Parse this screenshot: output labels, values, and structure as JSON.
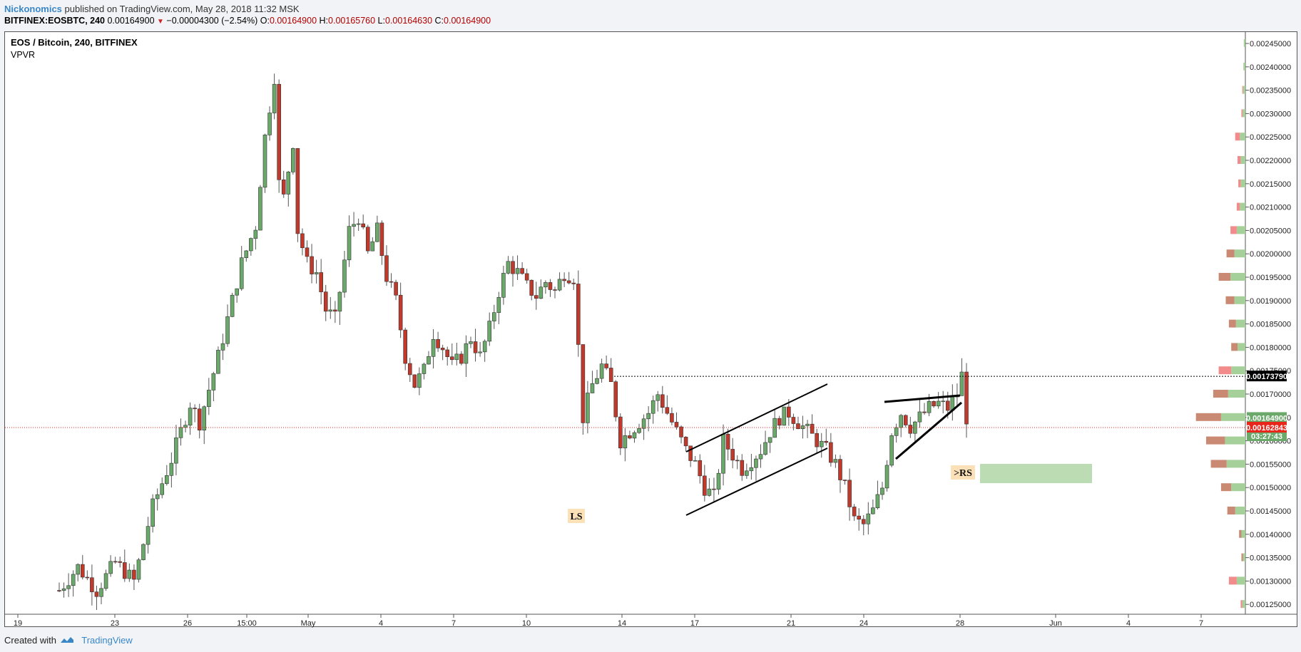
{
  "header": {
    "author": "Nickonomics",
    "published_text": "published on TradingView.com, May 28, 2018 11:32 MSK",
    "symbol": "BITFINEX:EOSBTC, 240",
    "last": "0.00164900",
    "change": "−0.00004300 (−2.54%)",
    "open_label": "O:",
    "open": "0.00164900",
    "high_label": "H:",
    "high": "0.00165760",
    "low_label": "L:",
    "low": "0.00164630",
    "close_label": "C:",
    "close": "0.00164900"
  },
  "chart_title": "EOS / Bitcoin, 240, BITFINEX",
  "indicator": "VPVR",
  "footer": {
    "created_with": "Created with",
    "brand": "TradingView"
  },
  "colors": {
    "up": "#6aa96a",
    "down": "#c0392b",
    "vp_up": "#a6d09a",
    "vp_down_red": "#f28b8b",
    "vp_down_brown": "#c98973",
    "accent": "#3a87c8"
  },
  "chart_data": {
    "type": "candlestick",
    "ylim": [
      0.00124,
      0.00248
    ],
    "y_ticks": [
      "0.00125000",
      "0.00130000",
      "0.00135000",
      "0.00140000",
      "0.00145000",
      "0.00150000",
      "0.00155000",
      "0.00160000",
      "0.00165000",
      "0.00170000",
      "0.00175000",
      "0.00180000",
      "0.00185000",
      "0.00190000",
      "0.00195000",
      "0.00200000",
      "0.00205000",
      "0.00210000",
      "0.00215000",
      "0.00220000",
      "0.00225000",
      "0.00230000",
      "0.00235000",
      "0.00240000",
      "0.00245000"
    ],
    "x_ticks": [
      "19",
      "23",
      "26",
      "15:00",
      "May",
      "4",
      "7",
      "10",
      "14",
      "17",
      "21",
      "24",
      "28",
      "Jun",
      "4",
      "7"
    ],
    "price_labels": [
      {
        "value": "0.00173790",
        "price": 0.0017379,
        "bg": "#000000"
      },
      {
        "value": "0.00164900",
        "price": 0.001649,
        "bg": "#6aa96a"
      },
      {
        "value": "03:27:43",
        "price": 0.001624,
        "bg": "#6aa96a"
      },
      {
        "value": "0.00162843",
        "price": 0.00162843,
        "bg": "#e8261c"
      }
    ],
    "annotations": [
      {
        "text": "LS",
        "type": "label"
      },
      {
        "text": ">RS",
        "type": "label"
      }
    ],
    "trend": [
      [
        0,
        0.00128
      ],
      [
        4,
        0.00133
      ],
      [
        8,
        0.00128
      ],
      [
        12,
        0.00134
      ],
      [
        16,
        0.0013
      ],
      [
        20,
        0.00146
      ],
      [
        24,
        0.00156
      ],
      [
        28,
        0.00168
      ],
      [
        30,
        0.00164
      ],
      [
        34,
        0.00178
      ],
      [
        36,
        0.00186
      ],
      [
        39,
        0.00198
      ],
      [
        42,
        0.00206
      ],
      [
        44,
        0.00225
      ],
      [
        46,
        0.00238
      ],
      [
        47,
        0.00215
      ],
      [
        48,
        0.00212
      ],
      [
        50,
        0.00224
      ],
      [
        51,
        0.00205
      ],
      [
        53,
        0.00198
      ],
      [
        55,
        0.00196
      ],
      [
        57,
        0.00188
      ],
      [
        59,
        0.00186
      ],
      [
        60,
        0.00192
      ],
      [
        62,
        0.00205
      ],
      [
        64,
        0.00208
      ],
      [
        66,
        0.002
      ],
      [
        68,
        0.00205
      ],
      [
        70,
        0.00195
      ],
      [
        72,
        0.0019
      ],
      [
        74,
        0.00178
      ],
      [
        76,
        0.00172
      ],
      [
        78,
        0.00175
      ],
      [
        80,
        0.00183
      ],
      [
        82,
        0.0018
      ],
      [
        84,
        0.00176
      ],
      [
        86,
        0.00178
      ],
      [
        88,
        0.00182
      ],
      [
        90,
        0.00178
      ],
      [
        92,
        0.00184
      ],
      [
        94,
        0.00192
      ],
      [
        96,
        0.00198
      ],
      [
        98,
        0.00196
      ],
      [
        100,
        0.00193
      ],
      [
        102,
        0.00191
      ],
      [
        104,
        0.00194
      ],
      [
        106,
        0.00192
      ],
      [
        108,
        0.00196
      ],
      [
        110,
        0.00195
      ],
      [
        111,
        0.0018
      ],
      [
        112,
        0.00165
      ],
      [
        114,
        0.00172
      ],
      [
        116,
        0.00176
      ],
      [
        118,
        0.00172
      ],
      [
        120,
        0.0016
      ],
      [
        122,
        0.00162
      ],
      [
        124,
        0.00164
      ],
      [
        126,
        0.00166
      ],
      [
        128,
        0.0017
      ],
      [
        130,
        0.00166
      ],
      [
        132,
        0.00162
      ],
      [
        134,
        0.00158
      ],
      [
        136,
        0.00155
      ],
      [
        138,
        0.0015
      ],
      [
        140,
        0.00148
      ],
      [
        142,
        0.0016
      ],
      [
        144,
        0.00157
      ],
      [
        146,
        0.00154
      ],
      [
        148,
        0.00156
      ],
      [
        150,
        0.00158
      ],
      [
        152,
        0.00162
      ],
      [
        154,
        0.00165
      ],
      [
        156,
        0.00166
      ],
      [
        158,
        0.00164
      ],
      [
        160,
        0.00162
      ],
      [
        162,
        0.0016
      ],
      [
        164,
        0.00158
      ],
      [
        166,
        0.00155
      ],
      [
        168,
        0.0015
      ],
      [
        170,
        0.00143
      ],
      [
        172,
        0.00142
      ],
      [
        174,
        0.00145
      ],
      [
        176,
        0.0015
      ],
      [
        178,
        0.00162
      ],
      [
        180,
        0.00166
      ],
      [
        182,
        0.00163
      ],
      [
        184,
        0.00165
      ],
      [
        186,
        0.00167
      ],
      [
        188,
        0.00168
      ],
      [
        190,
        0.00167
      ],
      [
        192,
        0.0017
      ],
      [
        193,
        0.00174
      ],
      [
        194,
        0.00165
      ]
    ],
    "volume_profile": [
      {
        "price": 0.00245,
        "up": 4,
        "down": 0
      },
      {
        "price": 0.0024,
        "up": 5,
        "down": 0
      },
      {
        "price": 0.00235,
        "up": 6,
        "down": 2
      },
      {
        "price": 0.0023,
        "up": 7,
        "down": 3
      },
      {
        "price": 0.00225,
        "up": 14,
        "down": 12
      },
      {
        "price": 0.0022,
        "up": 12,
        "down": 8
      },
      {
        "price": 0.00215,
        "up": 12,
        "down": 6
      },
      {
        "price": 0.0021,
        "up": 14,
        "down": 8
      },
      {
        "price": 0.00205,
        "up": 22,
        "down": 16
      },
      {
        "price": 0.002,
        "up": 28,
        "down": 20
      },
      {
        "price": 0.00195,
        "up": 38,
        "down": 30
      },
      {
        "price": 0.0019,
        "up": 28,
        "down": 22
      },
      {
        "price": 0.00185,
        "up": 24,
        "down": 18
      },
      {
        "price": 0.0018,
        "up": 20,
        "down": 16
      },
      {
        "price": 0.00175,
        "up": 36,
        "down": 32
      },
      {
        "price": 0.0017,
        "up": 44,
        "down": 38
      },
      {
        "price": 0.00165,
        "up": 62,
        "down": 64
      },
      {
        "price": 0.0016,
        "up": 52,
        "down": 48
      },
      {
        "price": 0.00155,
        "up": 48,
        "down": 40
      },
      {
        "price": 0.0015,
        "up": 36,
        "down": 26
      },
      {
        "price": 0.00145,
        "up": 26,
        "down": 20
      },
      {
        "price": 0.0014,
        "up": 10,
        "down": 6
      },
      {
        "price": 0.00135,
        "up": 6,
        "down": 4
      },
      {
        "price": 0.0013,
        "up": 22,
        "down": 20
      },
      {
        "price": 0.00125,
        "up": 8,
        "down": 4
      }
    ]
  }
}
